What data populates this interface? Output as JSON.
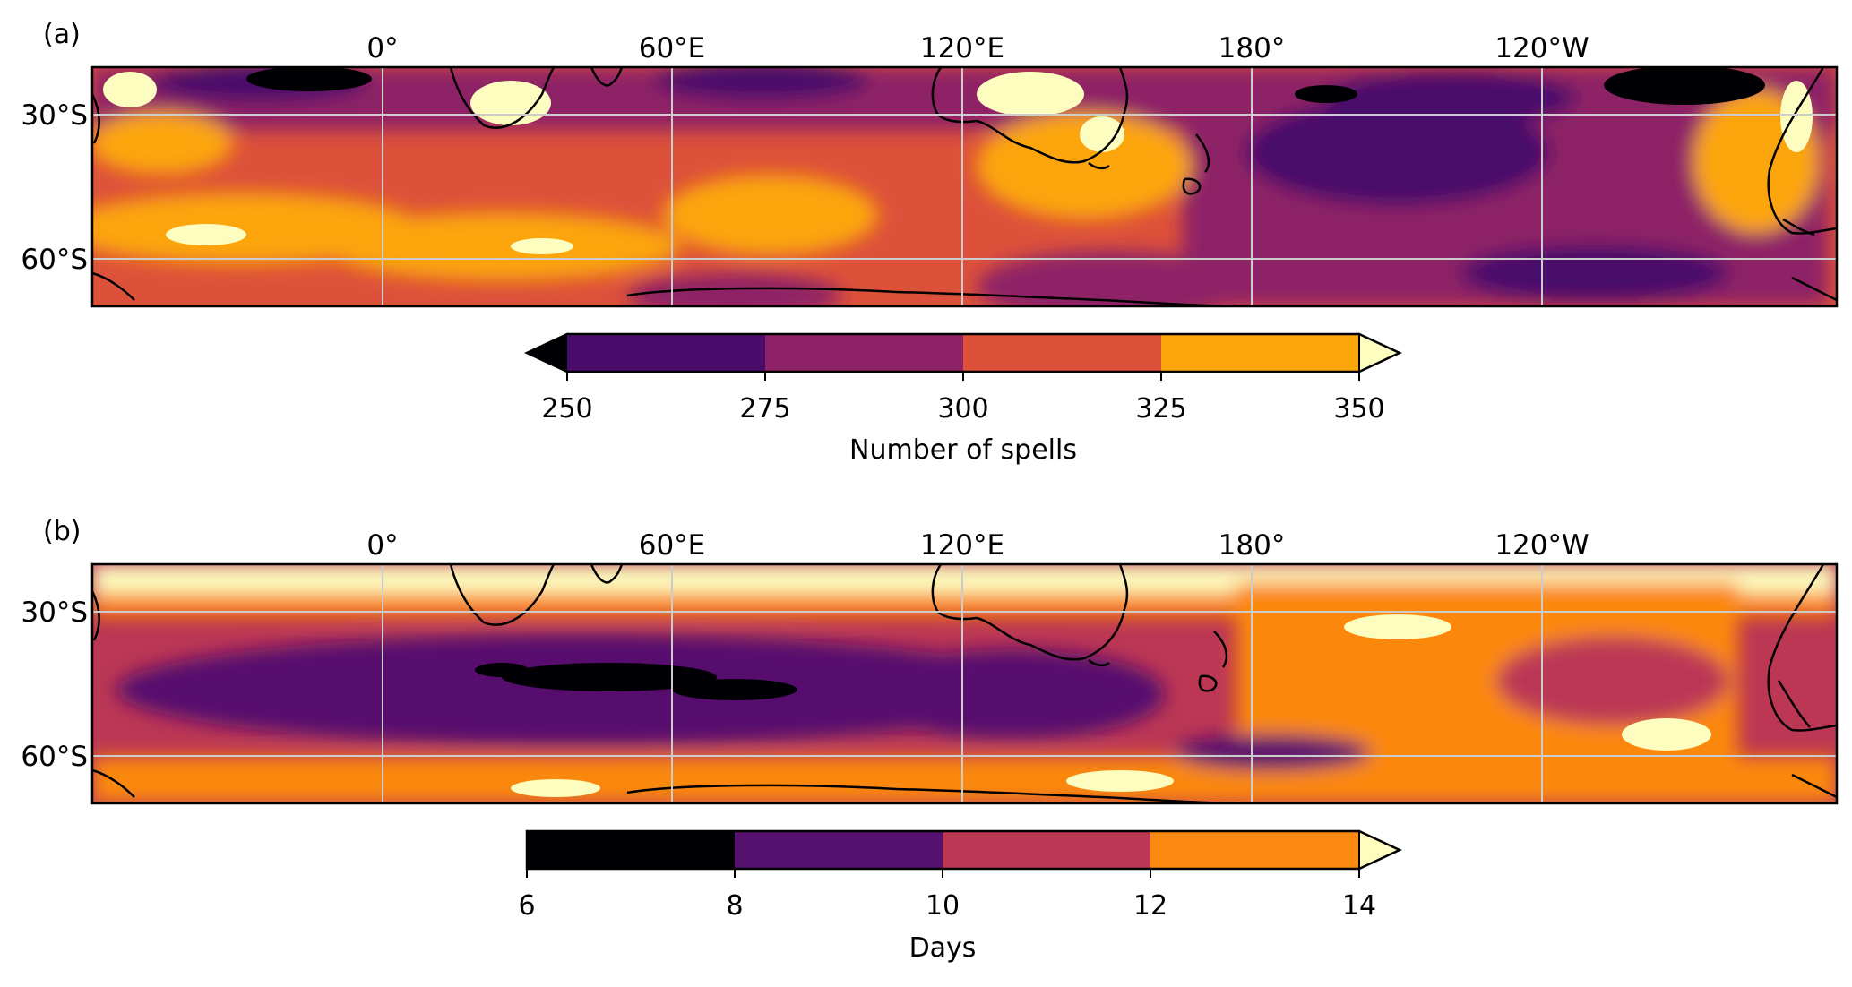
{
  "panels": [
    {
      "id": "a",
      "label": "(a)",
      "lon_ticks": [
        "0°",
        "60°E",
        "120°E",
        "180°",
        "120°W"
      ],
      "lat_ticks": [
        "30°S",
        "60°S"
      ],
      "colorbar": {
        "label": "Number of spells",
        "ticks": [
          "250",
          "275",
          "300",
          "325",
          "350"
        ],
        "below_color": "#000004",
        "bin_colors": [
          "#4a0c6b",
          "#8e2266",
          "#dd513a",
          "#fca50a"
        ],
        "above_color": "#fcfdbf"
      }
    },
    {
      "id": "b",
      "label": "(b)",
      "lon_ticks": [
        "0°",
        "60°E",
        "120°E",
        "180°",
        "120°W"
      ],
      "lat_ticks": [
        "30°S",
        "60°S"
      ],
      "colorbar": {
        "label": "Days",
        "ticks": [
          "6",
          "8",
          "10",
          "12",
          "14"
        ],
        "bin_colors": [
          "#000004",
          "#56106e",
          "#bb3754",
          "#fb8811"
        ],
        "above_color": "#fcfdbf"
      }
    }
  ]
}
